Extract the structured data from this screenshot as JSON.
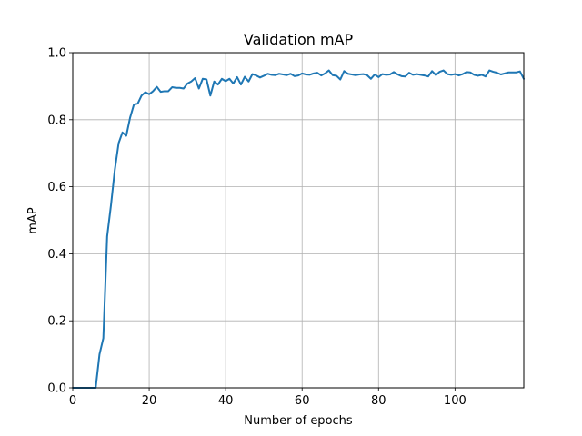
{
  "chart_data": {
    "type": "line",
    "title": "Validation mAP",
    "xlabel": "Number of epochs",
    "ylabel": "mAP",
    "xlim": [
      0,
      118
    ],
    "ylim": [
      0,
      1.0
    ],
    "x_ticks": [
      0,
      20,
      40,
      60,
      80,
      100
    ],
    "y_ticks": [
      0.0,
      0.2,
      0.4,
      0.6,
      0.8,
      1.0
    ],
    "x_tick_labels": [
      "0",
      "20",
      "40",
      "60",
      "80",
      "100"
    ],
    "y_tick_labels": [
      "0.0",
      "0.2",
      "0.4",
      "0.6",
      "0.8",
      "1.0"
    ],
    "grid": true,
    "series": [
      {
        "color": "#1f77b4",
        "x": [
          0,
          1,
          2,
          3,
          4,
          5,
          6,
          7,
          8,
          9,
          10,
          11,
          12,
          13,
          14,
          15,
          16,
          17,
          18,
          19,
          20,
          21,
          22,
          23,
          24,
          25,
          26,
          27,
          28,
          29,
          30,
          31,
          32,
          33,
          34,
          35,
          36,
          37,
          38,
          39,
          40,
          41,
          42,
          43,
          44,
          45,
          46,
          47,
          48,
          49,
          50,
          51,
          52,
          53,
          54,
          55,
          56,
          57,
          58,
          59,
          60,
          61,
          62,
          63,
          64,
          65,
          66,
          67,
          68,
          69,
          70,
          71,
          72,
          73,
          74,
          75,
          76,
          77,
          78,
          79,
          80,
          81,
          82,
          83,
          84,
          85,
          86,
          87,
          88,
          89,
          90,
          91,
          92,
          93,
          94,
          95,
          96,
          97,
          98,
          99,
          100,
          101,
          102,
          103,
          104,
          105,
          106,
          107,
          108,
          109,
          110,
          111,
          112,
          113,
          114,
          115,
          116,
          117,
          118
        ],
        "values": [
          0,
          0,
          0,
          0,
          0,
          0,
          0,
          0.1,
          0.148,
          0.452,
          0.545,
          0.65,
          0.73,
          0.762,
          0.752,
          0.806,
          0.845,
          0.848,
          0.872,
          0.882,
          0.876,
          0.885,
          0.898,
          0.883,
          0.885,
          0.885,
          0.897,
          0.895,
          0.895,
          0.893,
          0.908,
          0.914,
          0.924,
          0.893,
          0.922,
          0.92,
          0.872,
          0.914,
          0.905,
          0.922,
          0.915,
          0.922,
          0.908,
          0.927,
          0.905,
          0.928,
          0.914,
          0.936,
          0.932,
          0.926,
          0.931,
          0.937,
          0.934,
          0.933,
          0.937,
          0.935,
          0.933,
          0.937,
          0.93,
          0.932,
          0.938,
          0.935,
          0.934,
          0.938,
          0.94,
          0.932,
          0.938,
          0.947,
          0.933,
          0.931,
          0.92,
          0.945,
          0.937,
          0.935,
          0.933,
          0.935,
          0.936,
          0.933,
          0.922,
          0.935,
          0.927,
          0.936,
          0.934,
          0.935,
          0.942,
          0.935,
          0.93,
          0.929,
          0.94,
          0.934,
          0.936,
          0.934,
          0.932,
          0.929,
          0.945,
          0.933,
          0.943,
          0.947,
          0.936,
          0.934,
          0.936,
          0.932,
          0.936,
          0.942,
          0.941,
          0.934,
          0.931,
          0.934,
          0.929,
          0.947,
          0.943,
          0.94,
          0.935,
          0.938,
          0.941,
          0.941,
          0.941,
          0.944,
          0.922
        ]
      }
    ]
  }
}
